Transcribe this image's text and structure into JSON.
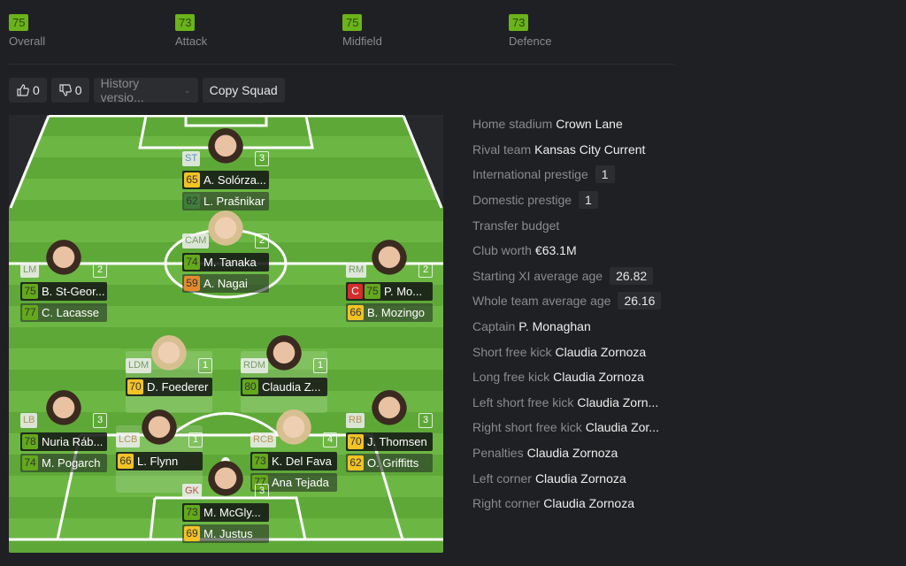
{
  "ratings": [
    {
      "value": "75",
      "label": "Overall"
    },
    {
      "value": "73",
      "label": "Attack"
    },
    {
      "value": "75",
      "label": "Midfield"
    },
    {
      "value": "73",
      "label": "Defence"
    }
  ],
  "toolbar": {
    "likes": "0",
    "dislikes": "0",
    "history": "History versio...",
    "copy": "Copy Squad"
  },
  "colors": {
    "green": "#64a81c",
    "yellow": "#f2c226",
    "orange": "#e58b2c",
    "darkgreen": "#3f7e3a",
    "captain": "#d42d2d"
  },
  "players": [
    {
      "pos": "ST",
      "num": "3",
      "main": {
        "rating": "65",
        "color": "yellow",
        "name": "A. Solórza..."
      },
      "sub": {
        "rating": "62",
        "color": "darkgreen",
        "name": "L. Prašnikar"
      }
    },
    {
      "pos": "CAM",
      "num": "2",
      "main": {
        "rating": "74",
        "color": "green",
        "name": "M. Tanaka"
      },
      "sub": {
        "rating": "59",
        "color": "orange",
        "name": "A. Nagai"
      }
    },
    {
      "pos": "LM",
      "num": "2",
      "main": {
        "rating": "75",
        "color": "green",
        "name": "B. St-Geor..."
      },
      "sub": {
        "rating": "77",
        "color": "green",
        "name": "C. Lacasse"
      }
    },
    {
      "pos": "RM",
      "num": "2",
      "captain": "C",
      "main": {
        "rating": "75",
        "color": "green",
        "name": "P. Mo..."
      },
      "sub": {
        "rating": "66",
        "color": "yellow",
        "name": "B. Mozingo"
      }
    },
    {
      "pos": "LDM",
      "num": "1",
      "main": {
        "rating": "70",
        "color": "yellow",
        "name": "D. Foederer"
      }
    },
    {
      "pos": "RDM",
      "num": "1",
      "main": {
        "rating": "80",
        "color": "green",
        "name": "Claudia Z..."
      }
    },
    {
      "pos": "LB",
      "num": "3",
      "main": {
        "rating": "78",
        "color": "green",
        "name": "Nuria Ráb..."
      },
      "sub": {
        "rating": "74",
        "color": "green",
        "name": "M. Pogarch"
      }
    },
    {
      "pos": "LCB",
      "num": "1",
      "main": {
        "rating": "66",
        "color": "yellow",
        "name": "L. Flynn"
      }
    },
    {
      "pos": "RCB",
      "num": "4",
      "main": {
        "rating": "73",
        "color": "green",
        "name": "K. Del Fava"
      },
      "sub": {
        "rating": "77",
        "color": "green",
        "name": "Ana Tejada"
      }
    },
    {
      "pos": "RB",
      "num": "3",
      "main": {
        "rating": "70",
        "color": "yellow",
        "name": "J. Thomsen"
      },
      "sub": {
        "rating": "62",
        "color": "yellow",
        "name": "O. Griffitts"
      }
    },
    {
      "pos": "GK",
      "num": "3",
      "main": {
        "rating": "73",
        "color": "green",
        "name": "M. McGly..."
      },
      "sub": {
        "rating": "69",
        "color": "yellow",
        "name": "M. Justus"
      }
    }
  ],
  "info": [
    {
      "label": "Home stadium",
      "value": "Crown Lane"
    },
    {
      "label": "Rival team",
      "value": "Kansas City Current"
    },
    {
      "label": "International prestige",
      "box": "1"
    },
    {
      "label": "Domestic prestige",
      "box": "1"
    },
    {
      "label": "Transfer budget"
    },
    {
      "label": "Club worth",
      "value": "€63.1M"
    },
    {
      "label": "Starting XI average age",
      "box": "26.82"
    },
    {
      "label": "Whole team average age",
      "box": "26.16"
    },
    {
      "label": "Captain",
      "value": "P. Monaghan"
    },
    {
      "label": "Short free kick",
      "value": "Claudia Zornoza"
    },
    {
      "label": "Long free kick",
      "value": "Claudia Zornoza"
    },
    {
      "label": "Left short free kick",
      "value": "Claudia Zorn..."
    },
    {
      "label": "Right short free kick",
      "value": "Claudia Zor..."
    },
    {
      "label": "Penalties",
      "value": "Claudia Zornoza"
    },
    {
      "label": "Left corner",
      "value": "Claudia Zornoza"
    },
    {
      "label": "Right corner",
      "value": "Claudia Zornoza"
    }
  ]
}
